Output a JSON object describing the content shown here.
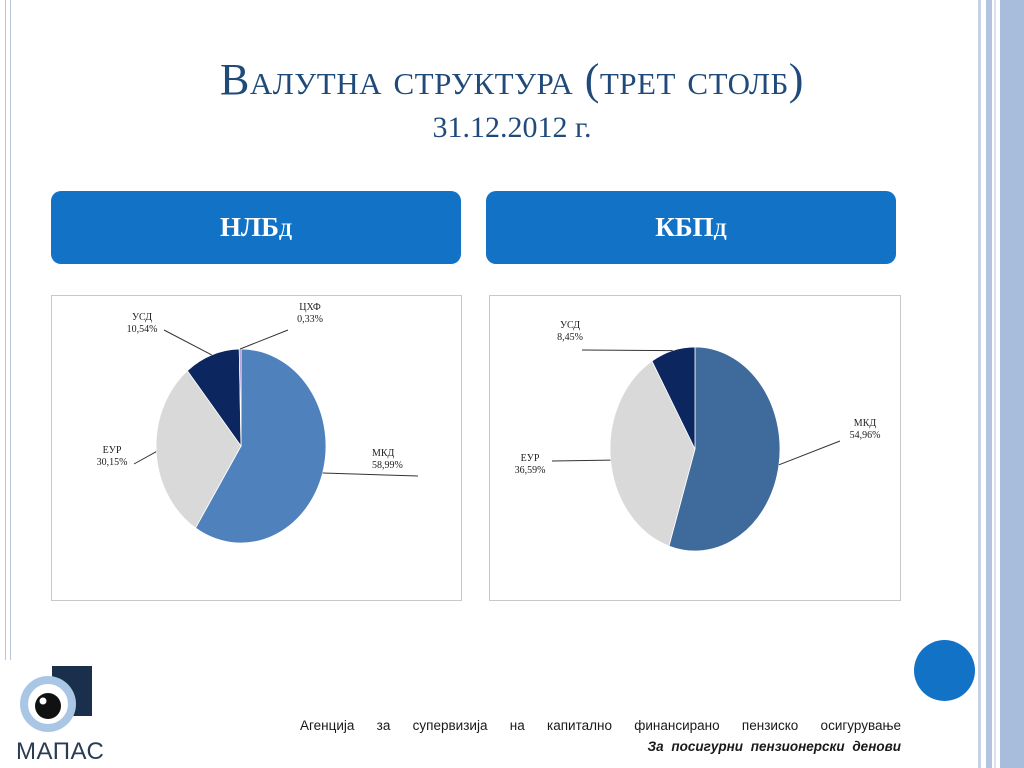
{
  "slide": {
    "title": "Валутна структура (трет столб)",
    "subtitle": "31.12.2012 г."
  },
  "panels": [
    {
      "label": "НЛБд"
    },
    {
      "label": "КБПд"
    }
  ],
  "chart_data": [
    {
      "type": "pie",
      "title": "НЛБд",
      "slices": [
        {
          "label": "МКД",
          "value": 58.99,
          "value_label": "58,99%",
          "color": "#4f81bd"
        },
        {
          "label": "ЕУР",
          "value": 30.15,
          "value_label": "30,15%",
          "color": "#d9d9d9"
        },
        {
          "label": "УСД",
          "value": 10.54,
          "value_label": "10,54%",
          "color": "#0c2660"
        },
        {
          "label": "ЦХФ",
          "value": 0.33,
          "value_label": "0,33%",
          "color": "#8a6bb8"
        }
      ]
    },
    {
      "type": "pie",
      "title": "КБПд",
      "slices": [
        {
          "label": "МКД",
          "value": 54.96,
          "value_label": "54,96%",
          "color": "#3f6a9c"
        },
        {
          "label": "ЕУР",
          "value": 36.59,
          "value_label": "36,59%",
          "color": "#d9d9d9"
        },
        {
          "label": "УСД",
          "value": 8.45,
          "value_label": "8,45%",
          "color": "#0c2660"
        }
      ]
    }
  ],
  "footer": {
    "agency": "Агенција за супервизија на капитално финансирано пензиско осигурување",
    "motto": "За посигурни пензионерски денови",
    "logo_text": "МАПАС"
  },
  "colors": {
    "accent": "#1272c6",
    "title": "#1f4a7a"
  }
}
